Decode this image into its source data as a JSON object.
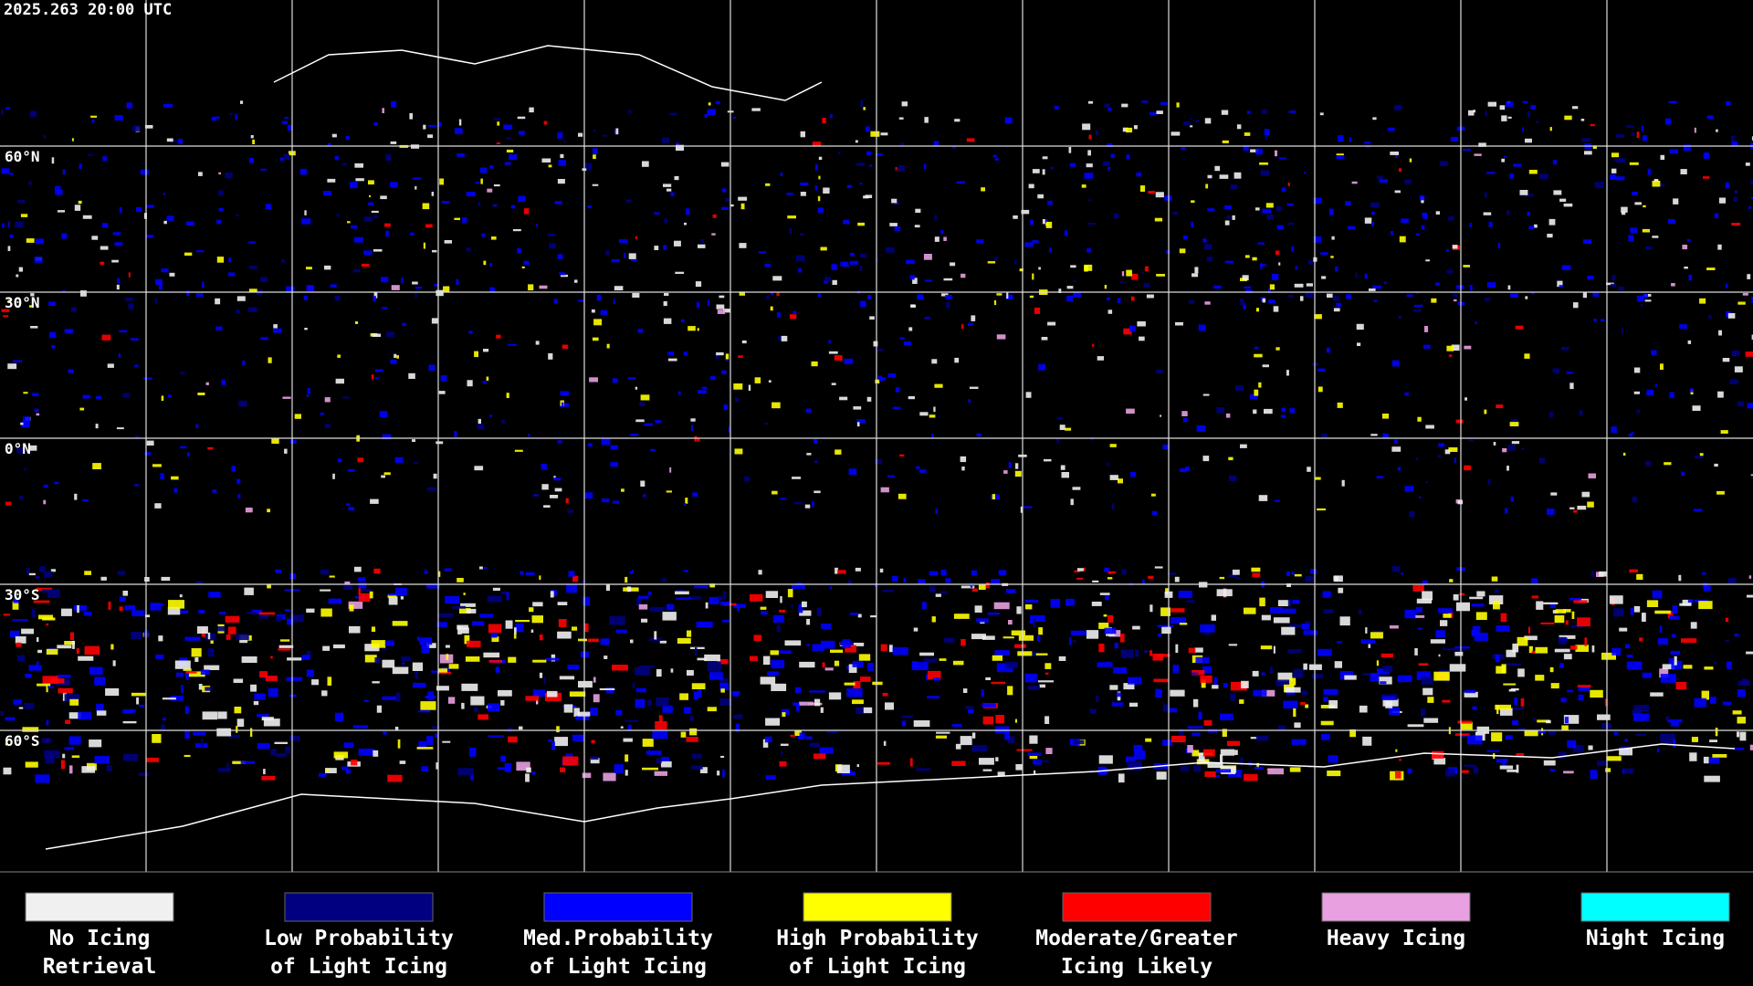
{
  "header": {
    "timestamp": "2025.263 20:00 UTC"
  },
  "map": {
    "latitude_labels": [
      "60°N",
      "30°N",
      "0°N",
      "30°S",
      "60°S"
    ]
  },
  "legend": {
    "items": [
      {
        "lines": [
          "No Icing",
          "Retrieval"
        ],
        "color": "#f0f0f0"
      },
      {
        "lines": [
          "Low Probability",
          "of Light Icing"
        ],
        "color": "#000080"
      },
      {
        "lines": [
          "Med.Probability",
          "of Light Icing"
        ],
        "color": "#0000ff"
      },
      {
        "lines": [
          "High Probability",
          "of Light Icing"
        ],
        "color": "#ffff00"
      },
      {
        "lines": [
          "Moderate/Greater",
          "Icing Likely"
        ],
        "color": "#ff0000"
      },
      {
        "lines": [
          "Heavy Icing"
        ],
        "color": "#e8a0e0"
      },
      {
        "lines": [
          "Night Icing"
        ],
        "color": "#00ffff"
      }
    ]
  }
}
